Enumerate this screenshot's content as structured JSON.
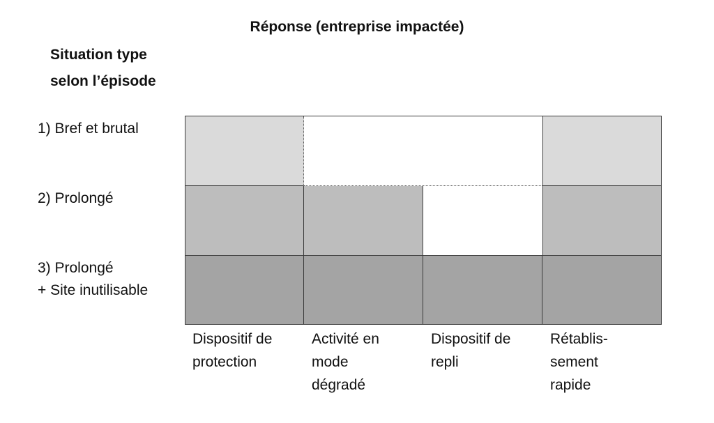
{
  "title": "Réponse (entreprise impactée)",
  "row_axis_title": [
    "Situation type",
    "selon l’épisode"
  ],
  "rows": [
    {
      "label": [
        "1) Bref et brutal"
      ]
    },
    {
      "label": [
        "2) Prolongé"
      ]
    },
    {
      "label": [
        "3) Prolongé",
        "+ Site inutilisable"
      ]
    }
  ],
  "columns": [
    {
      "label": [
        "Dispositif de",
        "protection"
      ]
    },
    {
      "label": [
        "Activité en",
        "mode",
        "dégradé"
      ]
    },
    {
      "label": [
        "Dispositif de",
        "repli"
      ]
    },
    {
      "label": [
        "Rétablis-",
        "sement",
        "rapide"
      ]
    }
  ],
  "colors": {
    "light": "#dadada",
    "medium": "#bdbdbd",
    "dark": "#a4a4a4",
    "white": "#ffffff"
  }
}
